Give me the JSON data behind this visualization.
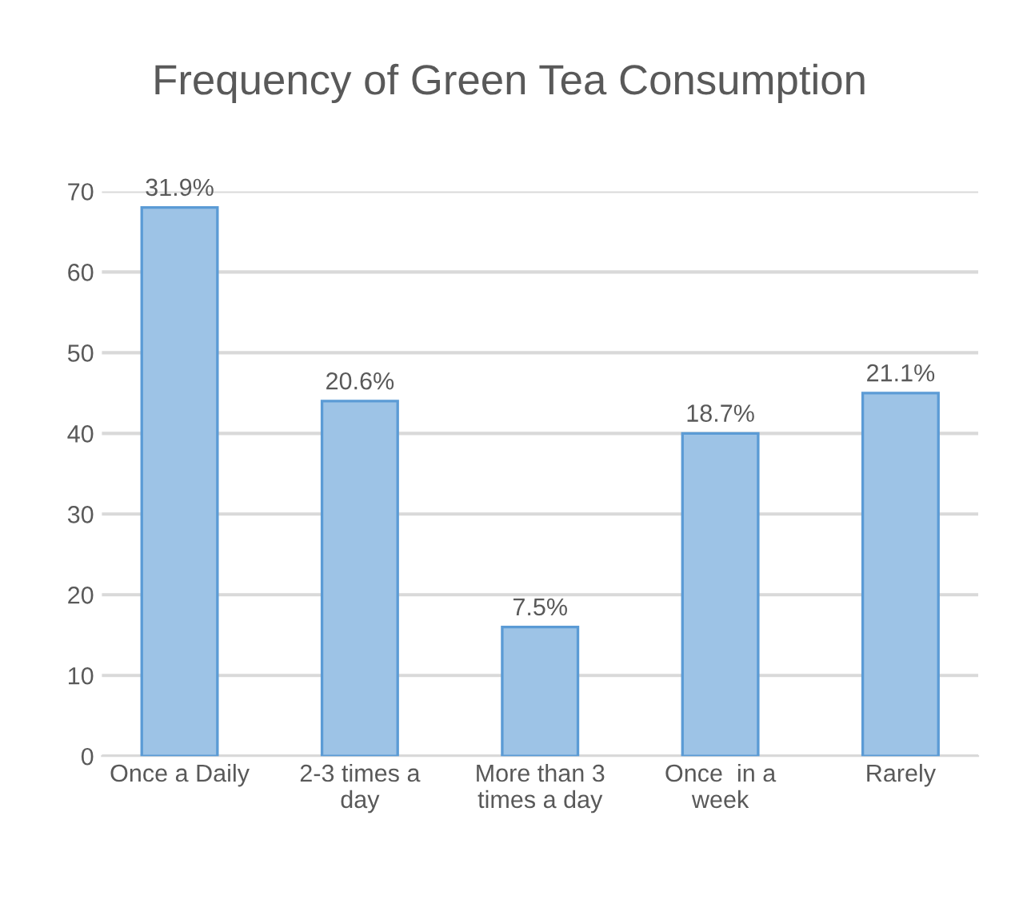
{
  "chart_data": {
    "type": "bar",
    "title": "Frequency of Green Tea Consumption",
    "categories": [
      "Once a Daily",
      "2-3 times a\nday",
      "More than 3\ntimes a day",
      "Once  in a\nweek",
      "Rarely"
    ],
    "values": [
      68,
      44,
      16,
      40,
      45
    ],
    "annotations": [
      {
        "text": "31.9%",
        "x": "Once a Daily",
        "y": 68
      },
      {
        "text": "20.6%",
        "x": "2-3 times a\nday",
        "y": 44
      },
      {
        "text": "7.5%",
        "x": "More than 3\ntimes a day",
        "y": 16
      },
      {
        "text": "18.7%",
        "x": "Once  in a\nweek",
        "y": 40
      },
      {
        "text": "21.1%",
        "x": "Rarely",
        "y": 45
      }
    ],
    "color": "#9dc3e6",
    "ylim": [
      0,
      70
    ],
    "yticks": [
      0,
      10,
      20,
      30,
      40,
      50,
      60,
      70
    ],
    "grid": "y",
    "legend": false
  }
}
